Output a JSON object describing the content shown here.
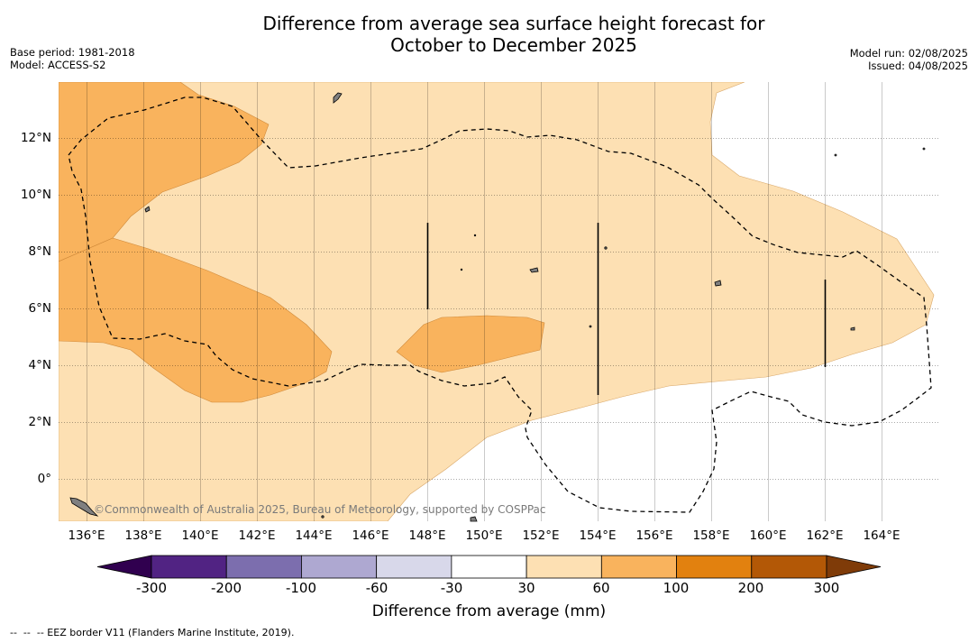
{
  "title_line1": "Difference from average sea surface height forecast for",
  "title_line2": "October to December 2025",
  "base_period": "Base period: 1981-2018",
  "model": "Model: ACCESS-S2",
  "model_run": "Model run: 02/08/2025",
  "issued": "Issued: 04/08/2025",
  "credit": "©Commonwealth of Australia 2025, Bureau of Meteorology, supported by COSPPac",
  "x_ticks": [
    "136°E",
    "138°E",
    "140°E",
    "142°E",
    "144°E",
    "146°E",
    "148°E",
    "150°E",
    "152°E",
    "154°E",
    "156°E",
    "158°E",
    "160°E",
    "162°E",
    "164°E"
  ],
  "y_ticks": [
    "12°N",
    "10°N",
    "8°N",
    "6°N",
    "4°N",
    "2°N",
    "0°"
  ],
  "legend": {
    "ticks": [
      "-300",
      "-200",
      "-100",
      "-60",
      "-30",
      "30",
      "60",
      "100",
      "200",
      "300"
    ],
    "colors": [
      "#30004f",
      "#512383",
      "#7c6eae",
      "#aea8d1",
      "#d8d8ea",
      "#ffffff",
      "#fde0b3",
      "#f9b35d",
      "#e2810f",
      "#b35806",
      "#7f3b08"
    ],
    "label": "Difference from average (mm)"
  },
  "footnote": "--  --  -- EEZ border V11 (Flanders Marine Institute, 2019).",
  "colors": {
    "light_orange": "#fde0b3",
    "mid_orange": "#f9b35d",
    "land": "#808080",
    "eez_border": "#000000"
  }
}
